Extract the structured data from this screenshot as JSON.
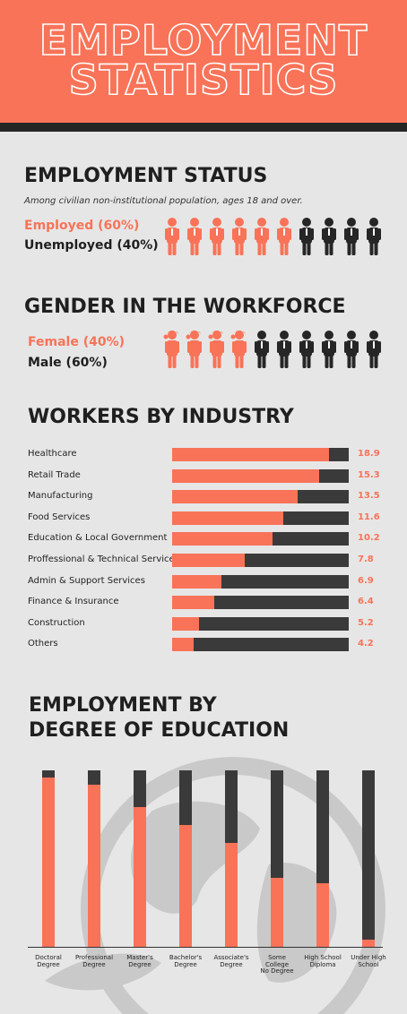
{
  "header": {
    "title_line1": "EMPLOYMENT",
    "title_line2": "STATISTICS"
  },
  "colors": {
    "accent": "#f87358",
    "dark": "#262626",
    "bar_bg": "#3a3a3a",
    "background": "#e6e6e6"
  },
  "employment_status": {
    "heading": "EMPLOYMENT STATUS",
    "subtitle": "Among civilian non-institutional population, ages 18 and over.",
    "employed_label": "Employed (60%)",
    "unemployed_label": "Unemployed (40%)",
    "icon_total": 10,
    "employed_icons": 6
  },
  "gender": {
    "heading": "GENDER IN THE WORKFORCE",
    "female_label": "Female (40%)",
    "male_label": "Male (60%)",
    "icon_total": 10,
    "female_icons": 4
  },
  "industry_heading": "WORKERS  BY INDUSTRY",
  "education_heading_line1": "EMPLOYMENT BY",
  "education_heading_line2": "DEGREE OF EDUCATION",
  "chart_data": [
    {
      "type": "bar",
      "orientation": "horizontal",
      "title": "WORKERS  BY INDUSTRY",
      "categories": [
        "Healthcare",
        "Retail Trade",
        "Manufacturing",
        "Food Services",
        "Education & Local Government",
        "Proffessional & Technical Services",
        "Admin & Support Services",
        "Finance & Insurance",
        "Construction",
        "Others"
      ],
      "values": [
        18.9,
        15.3,
        13.5,
        11.6,
        10.2,
        7.8,
        6.9,
        6.4,
        5.2,
        4.2
      ],
      "value_labels": [
        "18.9",
        "15.3",
        "13.5",
        "11.6",
        "10.2",
        "7.8",
        "6.9",
        "6.4",
        "5.2",
        "4.2"
      ],
      "fill_fractions": [
        0.89,
        0.83,
        0.71,
        0.63,
        0.57,
        0.41,
        0.28,
        0.24,
        0.15,
        0.12
      ]
    },
    {
      "type": "bar",
      "orientation": "vertical",
      "title": "EMPLOYMENT BY DEGREE OF EDUCATION",
      "categories": [
        "Doctoral Degree",
        "Professional Degree",
        "Master's Degree",
        "Bachelor's Degree",
        "Associate's Degree",
        "Some College No Degree",
        "High School Diploma",
        "Under High School"
      ],
      "label_lines": [
        [
          "Doctoral",
          "Degree"
        ],
        [
          "Professional",
          "Degree"
        ],
        [
          "Master's",
          "Degree"
        ],
        [
          "Bachelor's",
          "Degree"
        ],
        [
          "Associate's",
          "Degree"
        ],
        [
          "Some",
          "College",
          "No Degree"
        ],
        [
          "High School",
          "Diploma"
        ],
        [
          "Under High",
          "School"
        ]
      ],
      "fill_fractions": [
        0.96,
        0.92,
        0.79,
        0.69,
        0.59,
        0.39,
        0.36,
        0.04
      ]
    }
  ]
}
